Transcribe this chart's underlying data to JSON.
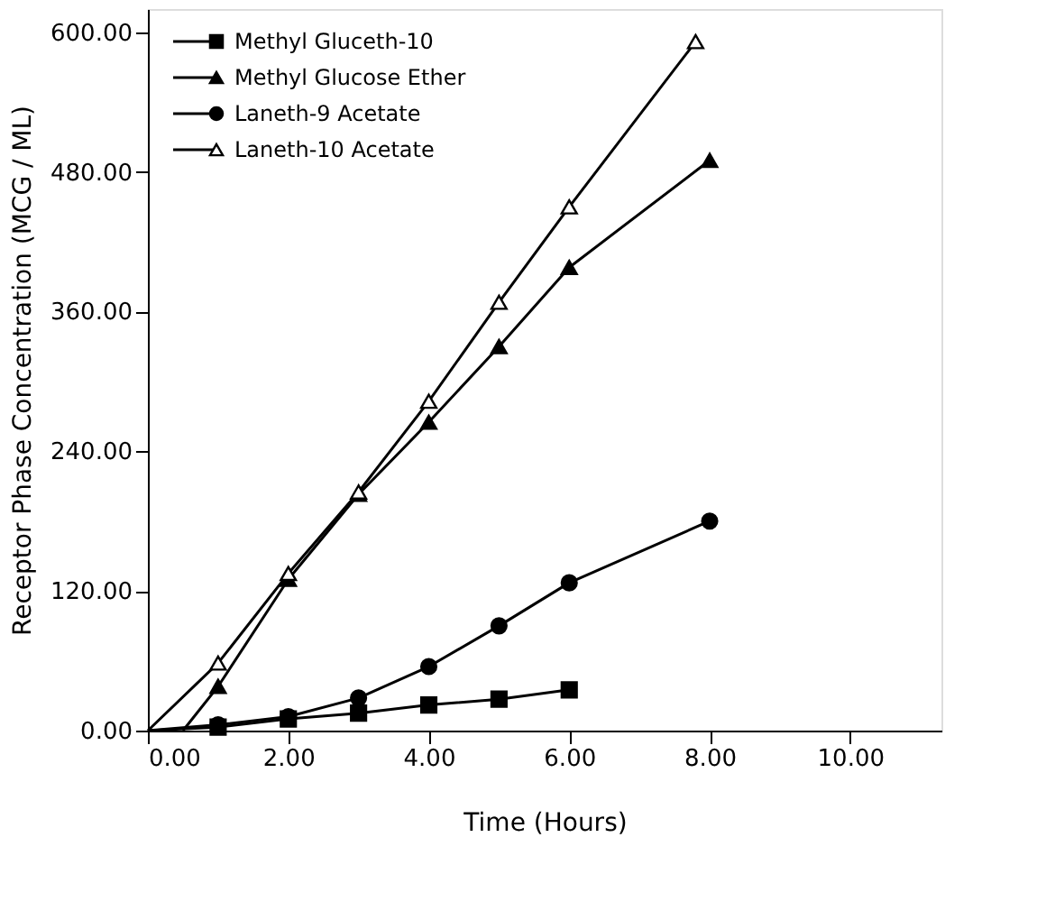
{
  "chart_data": {
    "type": "line",
    "xlabel": "Time (Hours)",
    "ylabel": "Receptor Phase Concentration (MCG / ML)",
    "xlim": [
      0,
      11.3
    ],
    "xticks": [
      {
        "value": 0,
        "label": "0.00"
      },
      {
        "value": 2,
        "label": "2.00"
      },
      {
        "value": 4,
        "label": "4.00"
      },
      {
        "value": 6,
        "label": "6.00"
      },
      {
        "value": 8,
        "label": "8.00"
      },
      {
        "value": 10,
        "label": "10.00"
      }
    ],
    "ylim": [
      0,
      620
    ],
    "yticks": [
      {
        "value": 0,
        "label": "0.00"
      },
      {
        "value": 120,
        "label": "120.00"
      },
      {
        "value": 240,
        "label": "240.00"
      },
      {
        "value": 360,
        "label": "360.00"
      },
      {
        "value": 480,
        "label": "480.00"
      },
      {
        "value": 600,
        "label": "600.00"
      }
    ],
    "grid": false,
    "legend": "top left",
    "line_style": "solid",
    "series": [
      {
        "name": "Methyl Gluceth-10",
        "color": "#000000",
        "marker": "square",
        "x": [
          0,
          1,
          2,
          3,
          4,
          5,
          6
        ],
        "values": [
          0,
          3,
          10,
          15,
          22,
          27,
          35
        ]
      },
      {
        "name": "Methyl Glucose Ether",
        "color": "#000000",
        "marker": "triangle",
        "x": [
          0.5,
          1,
          2,
          3,
          4,
          5,
          6,
          8
        ],
        "values": [
          0,
          38,
          130,
          203,
          265,
          330,
          398,
          490
        ]
      },
      {
        "name": "Laneth-9 Acetate",
        "color": "#000000",
        "marker": "circle",
        "x": [
          0,
          1,
          2,
          3,
          4,
          5,
          6,
          8
        ],
        "values": [
          0,
          5,
          12,
          28,
          55,
          90,
          127,
          180
        ]
      },
      {
        "name": "Laneth-10 Acetate",
        "color": "#000000",
        "marker": "triangle",
        "x": [
          0,
          1,
          2,
          3,
          4,
          5,
          6,
          7.8
        ],
        "values": [
          0,
          58,
          135,
          205,
          283,
          368,
          450,
          592
        ]
      }
    ]
  }
}
